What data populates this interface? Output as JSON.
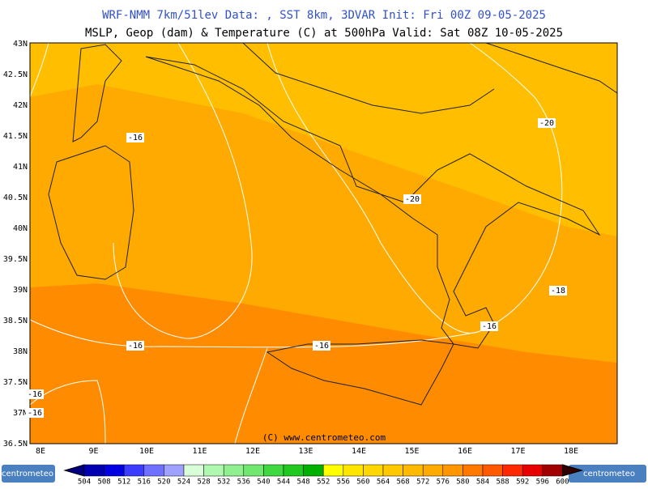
{
  "header": {
    "line1": "WRF-NMM 7km/51lev  Data: , SST 8km, 3DVAR  Init: Fri 00Z 09-05-2025",
    "line2": "MSLP, Geop (dam) & Temperature (C) at 500hPa  Valid: Sat 08Z 10-05-2025"
  },
  "map": {
    "lat_labels": [
      "43N",
      "42.5N",
      "42N",
      "41.5N",
      "41N",
      "40.5N",
      "40N",
      "39.5N",
      "39N",
      "38.5N",
      "38N",
      "37.5N",
      "37N",
      "36.5N"
    ],
    "lon_labels": [
      "8E",
      "9E",
      "10E",
      "11E",
      "12E",
      "13E",
      "14E",
      "15E",
      "16E",
      "17E",
      "18E"
    ],
    "contour_labels": [
      "-16",
      "-20",
      "-20",
      "-18",
      "-16",
      "-16",
      "-16",
      "-16",
      "-16"
    ],
    "copyright": "(C) www.centrometeo.com"
  },
  "colorbar": {
    "labels": [
      504,
      508,
      512,
      516,
      520,
      524,
      528,
      532,
      536,
      540,
      544,
      548,
      552,
      556,
      560,
      564,
      568,
      572,
      576,
      580,
      584,
      588,
      592,
      596,
      600
    ],
    "colors": [
      "#000080",
      "#0000b0",
      "#0000e0",
      "#3c3cff",
      "#7070ff",
      "#a0a0ff",
      "#d8ffd8",
      "#b0f8b0",
      "#90f090",
      "#70e870",
      "#40d840",
      "#20c820",
      "#00b000",
      "#ffff00",
      "#ffe600",
      "#ffd700",
      "#ffc800",
      "#ffb900",
      "#ffaa00",
      "#ff9600",
      "#ff7800",
      "#ff5a00",
      "#ff2800",
      "#e60000",
      "#a00000",
      "#780000",
      "#500000",
      "#300000"
    ]
  },
  "logos": [
    "centrometeo",
    "centrometeo"
  ]
}
